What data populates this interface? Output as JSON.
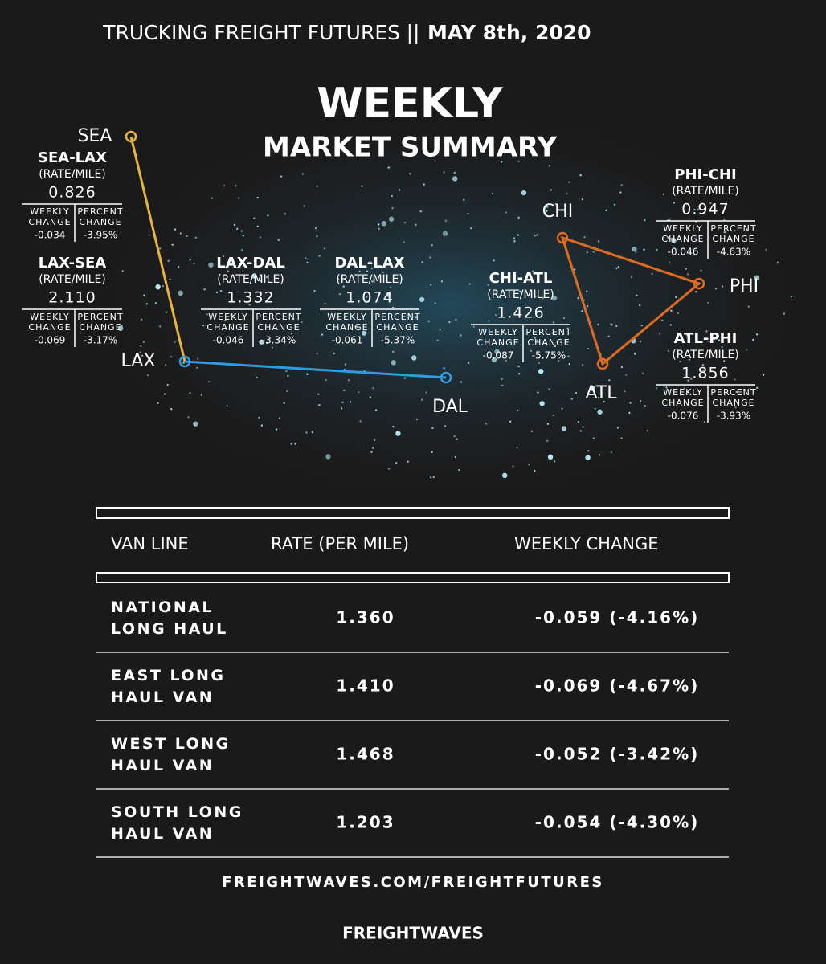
{
  "header": {
    "series": "TRUCKING FREIGHT FUTURES",
    "separator": "||",
    "date": "MAY 8th, 2020"
  },
  "title": "WEEKLY",
  "subtitle": "MARKET SUMMARY",
  "cities": [
    "SEA",
    "LAX",
    "DAL",
    "CHI",
    "ATL",
    "PHI"
  ],
  "labels": {
    "rate_unit": "(RATE/MILE)",
    "weekly": "WEEKLY",
    "change": "CHANGE",
    "percent": "PERCENT"
  },
  "lanes": [
    {
      "name": "SEA-LAX",
      "rate": "0.826",
      "weekly_change": "-0.034",
      "percent_change": "-3.95%"
    },
    {
      "name": "LAX-SEA",
      "rate": "2.110",
      "weekly_change": "-0.069",
      "percent_change": "-3.17%"
    },
    {
      "name": "LAX-DAL",
      "rate": "1.332",
      "weekly_change": "-0.046",
      "percent_change": "-3.34%"
    },
    {
      "name": "DAL-LAX",
      "rate": "1.074",
      "weekly_change": "-0.061",
      "percent_change": "-5.37%"
    },
    {
      "name": "CHI-ATL",
      "rate": "1.426",
      "weekly_change": "-0.087",
      "percent_change": "-5.75%"
    },
    {
      "name": "PHI-CHI",
      "rate": "0.947",
      "weekly_change": "-0.046",
      "percent_change": "-4.63%"
    },
    {
      "name": "ATL-PHI",
      "rate": "1.856",
      "weekly_change": "-0.076",
      "percent_change": "-3.93%"
    }
  ],
  "table": {
    "headers": [
      "VAN LINE",
      "RATE (PER MILE)",
      "WEEKLY CHANGE"
    ],
    "rows": [
      [
        "NATIONAL LONG HAUL",
        "1.360",
        "-0.059 (-4.16%)"
      ],
      [
        "EAST LONG HAUL VAN",
        "1.410",
        "-0.069 (-4.67%)"
      ],
      [
        "WEST LONG HAUL VAN",
        "1.468",
        "-0.052 (-3.42%)"
      ],
      [
        "SOUTH LONG HAUL VAN",
        "1.203",
        "-0.054 (-4.30%)"
      ]
    ]
  },
  "footer": {
    "url": "FREIGHTWAVES.COM/FREIGHTFUTURES",
    "logo": "FREIGHTWAVES"
  }
}
